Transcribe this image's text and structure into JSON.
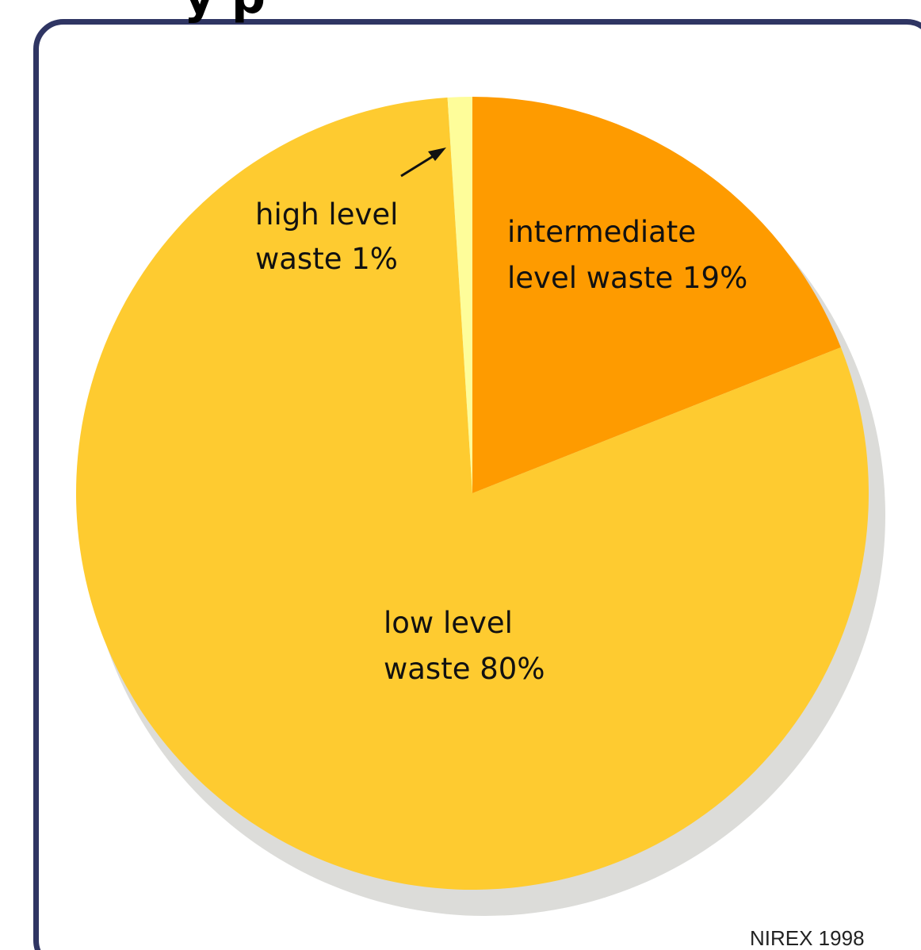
{
  "cut_title_text": "y p",
  "source": "NIREX 1998",
  "chart_data": {
    "type": "pie",
    "start_angle_deg": 0,
    "direction": "clockwise",
    "slices": [
      {
        "label_lines": [
          "intermediate",
          "level waste 19%"
        ],
        "value": 19,
        "color": "#fe9b00"
      },
      {
        "label_lines": [
          "low level",
          "waste 80%"
        ],
        "value": 80,
        "color": "#fecb30"
      },
      {
        "label_lines": [
          "high level",
          "waste 1%"
        ],
        "value": 1,
        "color": "#fefd9a"
      }
    ],
    "shadow_color": "#dcdcd9"
  }
}
